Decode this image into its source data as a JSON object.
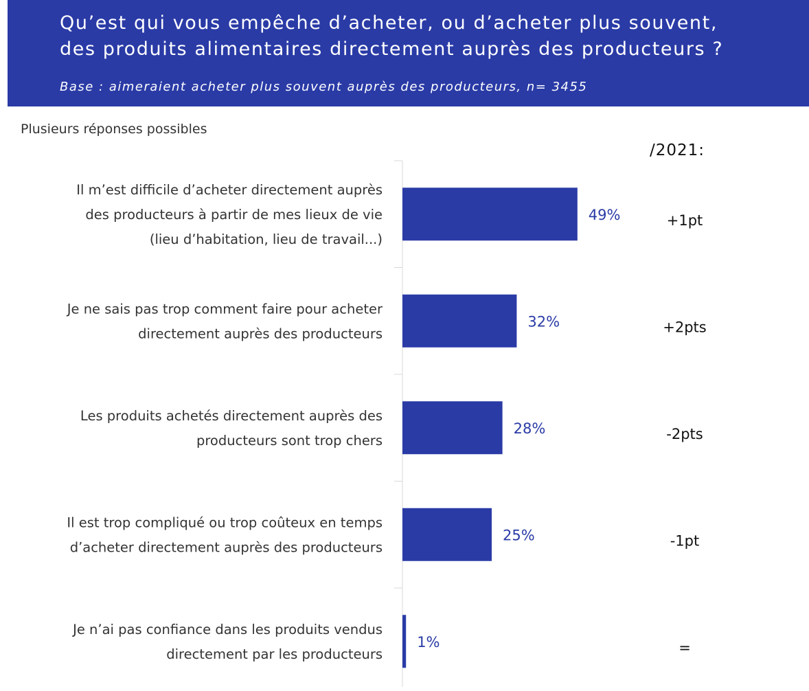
{
  "header": {
    "title_line1": "Qu’est qui vous empêche d’acheter, ou d’acheter plus souvent,",
    "title_line2": "des produits alimentaires directement auprès des producteurs ?",
    "subtitle": "Base : aimeraient acheter plus souvent auprès des producteurs, n= 3455"
  },
  "note": "Plusieurs réponses possibles",
  "comparison_header": "/2021:",
  "colors": {
    "bar": "#2a3ba6",
    "header_bg": "#2a3ba6"
  },
  "chart_data": {
    "type": "bar",
    "orientation": "horizontal",
    "categories": [
      [
        "Il m’est difficile d’acheter directement auprès",
        "des producteurs à partir de mes lieux de vie",
        "(lieu d’habitation, lieu de travail...)"
      ],
      [
        "Je ne sais pas trop comment faire pour acheter",
        "directement auprès des producteurs"
      ],
      [
        "Les produits achetés directement auprès des",
        "producteurs sont trop chers"
      ],
      [
        "Il est trop compliqué ou trop coûteux en temps",
        "d’acheter directement auprès des producteurs"
      ],
      [
        "Je n’ai pas confiance dans les produits vendus",
        "directement par les producteurs"
      ]
    ],
    "values": [
      49,
      32,
      28,
      25,
      1
    ],
    "value_labels": [
      "49%",
      "32%",
      "28%",
      "25%",
      "1%"
    ],
    "deltas_vs_2021": [
      "+1pt",
      "+2pts",
      "-2pts",
      "-1pt",
      "="
    ],
    "unit": "%",
    "xlim": [
      0,
      100
    ]
  }
}
